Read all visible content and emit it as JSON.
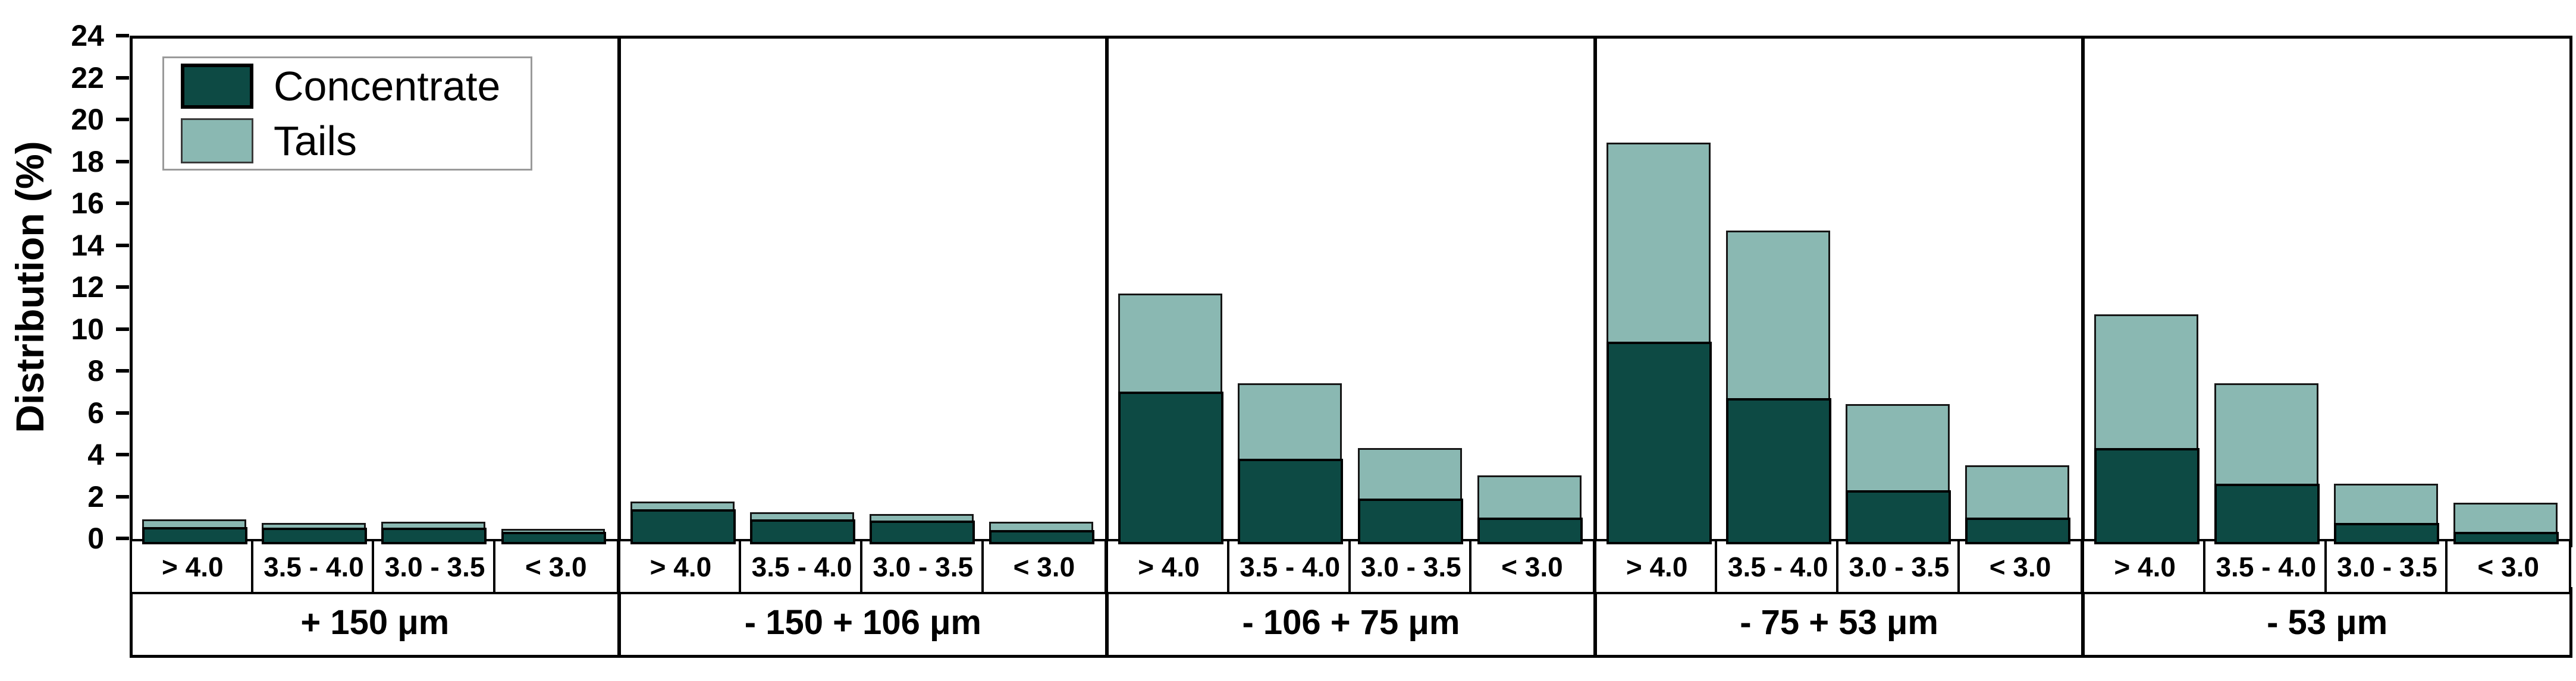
{
  "chart_data": {
    "type": "bar",
    "stacked": true,
    "title": "",
    "ylabel": "Distribution (%)",
    "xlabel": "",
    "ylim": [
      0,
      24
    ],
    "ytick_step": 2,
    "y_tick_labels": [
      "0",
      "2",
      "4",
      "6",
      "8",
      "10",
      "12",
      "14",
      "16",
      "18",
      "20",
      "22",
      "24"
    ],
    "grid": false,
    "legend_position": "top-left",
    "legend": [
      {
        "label": "Concentrate",
        "color": "#0d4a44"
      },
      {
        "label": "Tails",
        "color": "#8ab8b2"
      }
    ],
    "categories": [
      "> 4.0",
      "3.5 - 4.0",
      "3.0 - 3.5",
      "< 3.0"
    ],
    "series_names": [
      "Concentrate",
      "Tails"
    ],
    "panels": [
      {
        "label": "+ 150 μm",
        "series": [
          {
            "name": "Concentrate",
            "values": [
              0.55,
              0.5,
              0.5,
              0.3
            ]
          },
          {
            "name": "Tails",
            "values": [
              0.35,
              0.25,
              0.3,
              0.15
            ]
          }
        ]
      },
      {
        "label": "- 150 + 106 μm",
        "series": [
          {
            "name": "Concentrate",
            "values": [
              1.4,
              0.9,
              0.85,
              0.4
            ]
          },
          {
            "name": "Tails",
            "values": [
              0.35,
              0.35,
              0.3,
              0.4
            ]
          }
        ]
      },
      {
        "label": "- 106 + 75 μm",
        "series": [
          {
            "name": "Concentrate",
            "values": [
              7.0,
              3.8,
              1.9,
              1.0
            ]
          },
          {
            "name": "Tails",
            "values": [
              4.7,
              3.6,
              2.4,
              2.0
            ]
          }
        ]
      },
      {
        "label": "- 75 + 53 μm",
        "series": [
          {
            "name": "Concentrate",
            "values": [
              9.4,
              6.7,
              2.3,
              1.0
            ]
          },
          {
            "name": "Tails",
            "values": [
              9.5,
              8.0,
              4.1,
              2.5
            ]
          }
        ]
      },
      {
        "label": "- 53 μm",
        "series": [
          {
            "name": "Concentrate",
            "values": [
              4.3,
              2.6,
              0.75,
              0.3
            ]
          },
          {
            "name": "Tails",
            "values": [
              6.4,
              4.8,
              1.85,
              1.4
            ]
          }
        ]
      }
    ]
  },
  "colors": {
    "concentrate": "#0d4a44",
    "tails": "#8ab8b2",
    "axis": "#000000",
    "legend_border": "#9a9a9a",
    "background": "#ffffff"
  }
}
